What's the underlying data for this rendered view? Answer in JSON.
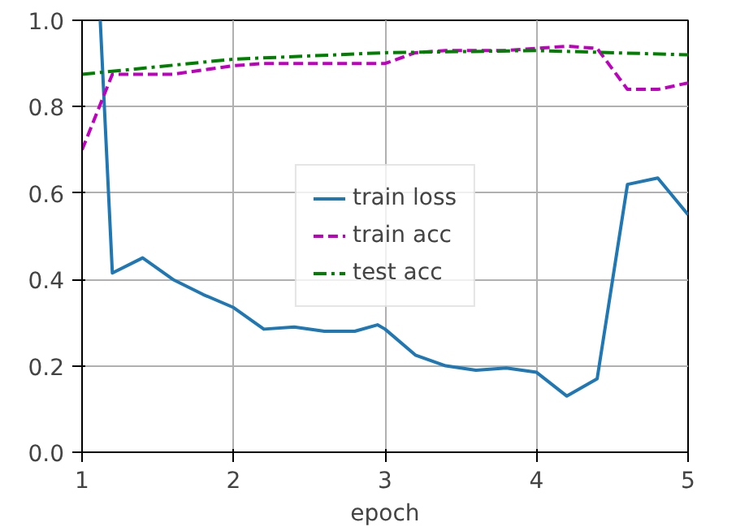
{
  "chart_data": {
    "type": "line",
    "xlabel": "epoch",
    "xlim": [
      1,
      5
    ],
    "ylim": [
      0,
      1.0
    ],
    "xticks": [
      1,
      2,
      3,
      4,
      5
    ],
    "yticks": [
      {
        "value": 0,
        "label": "0.0"
      },
      0.2,
      0.4,
      0.6,
      0.8,
      {
        "value": 1,
        "label": "1.0"
      }
    ],
    "grid": true,
    "legend": "center",
    "series": [
      {
        "name": "train loss",
        "color": "#1f77b4",
        "line_style": "solid",
        "x": [
          1.12,
          1.2,
          1.4,
          1.6,
          1.8,
          2.0,
          2.2,
          2.4,
          2.6,
          2.8,
          2.95,
          3.0,
          3.2,
          3.4,
          3.6,
          3.8,
          4.0,
          4.2,
          4.4,
          4.6,
          4.8,
          5.0
        ],
        "values": [
          1.0,
          0.415,
          0.45,
          0.4,
          0.365,
          0.335,
          0.285,
          0.29,
          0.28,
          0.28,
          0.295,
          0.285,
          0.225,
          0.2,
          0.19,
          0.195,
          0.185,
          0.13,
          0.17,
          0.62,
          0.635,
          0.55
        ]
      },
      {
        "name": "train acc",
        "color": "#bf00bf",
        "line_style": "dashed",
        "x": [
          1.0,
          1.2,
          1.4,
          1.6,
          1.8,
          2.0,
          2.2,
          2.4,
          2.6,
          2.8,
          3.0,
          3.2,
          3.4,
          3.6,
          3.8,
          4.0,
          4.2,
          4.4,
          4.6,
          4.8,
          5.0
        ],
        "values": [
          0.7,
          0.875,
          0.875,
          0.875,
          0.885,
          0.895,
          0.9,
          0.9,
          0.9,
          0.9,
          0.9,
          0.925,
          0.93,
          0.93,
          0.93,
          0.935,
          0.94,
          0.935,
          0.84,
          0.84,
          0.855
        ]
      },
      {
        "name": "test acc",
        "color": "#008000",
        "line_style": "dashdot",
        "x": [
          1,
          2,
          3,
          4,
          5
        ],
        "values": [
          0.875,
          0.91,
          0.925,
          0.93,
          0.92
        ]
      }
    ]
  }
}
